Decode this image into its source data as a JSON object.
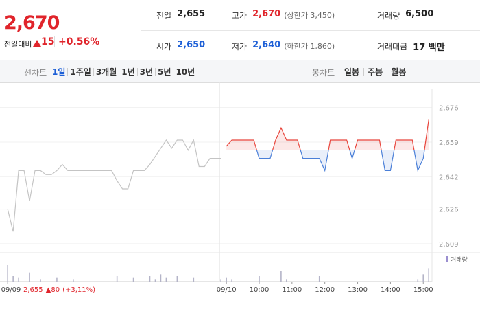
{
  "header": {
    "price": "2,670",
    "change_label": "전일대비",
    "change": "15",
    "change_rate": "+0.56%",
    "color": "#e0242b"
  },
  "summary": {
    "rows": [
      [
        {
          "label": "전일",
          "value": "2,655",
          "color": "#222222"
        },
        {
          "label": "고가",
          "value": "2,670",
          "note": "(상한가 3,450)",
          "color": "#e0242b"
        },
        {
          "label": "거래량",
          "value": "6,500",
          "color": "#222222"
        }
      ],
      [
        {
          "label": "시가",
          "value": "2,650",
          "color": "#1d5fd6"
        },
        {
          "label": "저가",
          "value": "2,640",
          "note": "(하한가 1,860)",
          "color": "#1d5fd6"
        },
        {
          "label": "거래대금",
          "value": "17 백만",
          "color": "#222222"
        }
      ]
    ]
  },
  "tabs": {
    "line_label": "선차트",
    "line_periods": [
      "1일",
      "1주일",
      "3개월",
      "1년",
      "3년",
      "5년",
      "10년"
    ],
    "active": 0,
    "candle_label": "봉차트",
    "candle_periods": [
      "일봉",
      "주봉",
      "월봉"
    ]
  },
  "chart_data": {
    "type": "line",
    "x": [
      0,
      1,
      2,
      3,
      4,
      5,
      6,
      7,
      8,
      9,
      10,
      11,
      12,
      13,
      14,
      15,
      16,
      17,
      18,
      19,
      20,
      21,
      22,
      23,
      24,
      25,
      26,
      27,
      28,
      29,
      30,
      31,
      32,
      33,
      34,
      35,
      36,
      37,
      38,
      39,
      40,
      41,
      42,
      43,
      44,
      45,
      46,
      47,
      48,
      49,
      50,
      51,
      52,
      53,
      54,
      55,
      56,
      57,
      58,
      59,
      60,
      61,
      62,
      63,
      64,
      65,
      66,
      67,
      68,
      69,
      70,
      71,
      72,
      73,
      74,
      75,
      76,
      77
    ],
    "series": [
      {
        "color": "#c4c4c4",
        "values": [
          2626,
          2615,
          2645,
          2645,
          2630,
          2645,
          2645,
          2643,
          2643,
          2645,
          2648,
          2645,
          2645,
          2645,
          2645,
          2645,
          2645,
          2645,
          2645,
          2645,
          2640,
          2636,
          2636,
          2645,
          2645,
          2645,
          2648,
          2652,
          2656,
          2660,
          2656,
          2660,
          2660,
          2655,
          2660,
          2647,
          2647,
          2651,
          2651,
          2651,
          null,
          null,
          null,
          null,
          null,
          null,
          null,
          null,
          null,
          null,
          null,
          null,
          null,
          null,
          null,
          null,
          null,
          null,
          null,
          null,
          null,
          null,
          null,
          null,
          null,
          null,
          null,
          null,
          null,
          null,
          null,
          null,
          null,
          null,
          null,
          null,
          null,
          null
        ]
      },
      {
        "color": "#e8453c",
        "down_color": "#4a7fd8",
        "values": [
          null,
          null,
          null,
          null,
          null,
          null,
          null,
          null,
          null,
          null,
          null,
          null,
          null,
          null,
          null,
          null,
          null,
          null,
          null,
          null,
          null,
          null,
          null,
          null,
          null,
          null,
          null,
          null,
          null,
          null,
          null,
          null,
          null,
          null,
          null,
          null,
          null,
          null,
          null,
          null,
          2657,
          2660,
          2660,
          2660,
          2660,
          2660,
          2651,
          2651,
          2651,
          2660,
          2666,
          2660,
          2660,
          2660,
          2651,
          2651,
          2651,
          2651,
          2645,
          2660,
          2660,
          2660,
          2660,
          2651,
          2660,
          2660,
          2660,
          2660,
          2660,
          2645,
          2645,
          2660,
          2660,
          2660,
          2660,
          2645,
          2651,
          2670
        ]
      }
    ],
    "baseline": 2655,
    "volume": {
      "name": "거래량",
      "color": "#b4b4c8",
      "vlim": [
        0,
        1500
      ],
      "values": [
        900,
        300,
        200,
        0,
        500,
        0,
        100,
        0,
        0,
        200,
        0,
        0,
        100,
        0,
        0,
        0,
        0,
        0,
        0,
        0,
        300,
        0,
        0,
        200,
        0,
        0,
        300,
        100,
        400,
        200,
        0,
        300,
        0,
        0,
        200,
        0,
        0,
        0,
        0,
        100,
        200,
        100,
        0,
        0,
        0,
        0,
        300,
        0,
        0,
        0,
        600,
        100,
        0,
        0,
        0,
        0,
        0,
        300,
        0,
        0,
        0,
        0,
        0,
        0,
        0,
        0,
        0,
        0,
        0,
        0,
        0,
        0,
        0,
        0,
        0,
        100,
        400,
        700
      ]
    },
    "xlim": [
      -1.4,
      77.6
    ],
    "xticks": [
      {
        "value": 0,
        "label": "09/09"
      },
      {
        "value": 40,
        "label": "09/10"
      },
      {
        "value": 46,
        "label": "10:00"
      },
      {
        "value": 52,
        "label": "11:00"
      },
      {
        "value": 58,
        "label": "12:00"
      },
      {
        "value": 64,
        "label": "13:00"
      },
      {
        "value": 70,
        "label": "14:00"
      },
      {
        "value": 76,
        "label": "15:00"
      }
    ],
    "ylim": [
      2605.6,
      2685
    ],
    "yticks": [
      {
        "value": 2676,
        "label": "2,676"
      },
      {
        "value": 2659,
        "label": "2,659"
      },
      {
        "value": 2642,
        "label": "2,642"
      },
      {
        "value": 2626,
        "label": "2,626"
      },
      {
        "value": 2609,
        "label": "2,609"
      }
    ],
    "prev_close": {
      "value": "2,655",
      "change": "▲80",
      "rate": "(+3,11%)",
      "color": "#e0242b"
    }
  }
}
